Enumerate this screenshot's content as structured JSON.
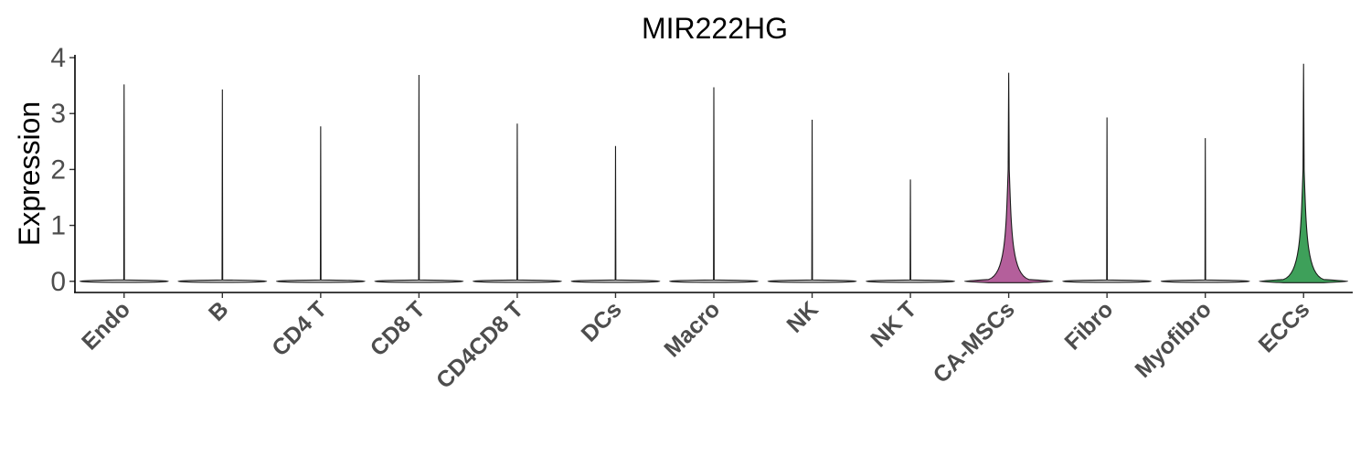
{
  "chart_data": {
    "type": "violin",
    "title": "MIR222HG",
    "xlabel": "",
    "ylabel": "Expression",
    "ylim": [
      -0.2,
      4.05
    ],
    "yticks": [
      0,
      1,
      2,
      3,
      4
    ],
    "grid": false,
    "legend": "none",
    "categories": [
      "Endo",
      "B",
      "CD4 T",
      "CD8 T",
      "CD4CD8 T",
      "DCs",
      "Macro",
      "NK",
      "NK T",
      "CA-MSCs",
      "Fibro",
      "Myofibro",
      "ECCs"
    ],
    "max_values": [
      3.52,
      3.43,
      2.77,
      3.69,
      2.82,
      2.42,
      3.47,
      2.89,
      1.82,
      3.73,
      2.93,
      2.56,
      3.89
    ],
    "fill_colors": [
      "#d9d9d9",
      "#d9d9d9",
      "#d9d9d9",
      "#d9d9d9",
      "#d9d9d9",
      "#d9d9d9",
      "#d9d9d9",
      "#d9d9d9",
      "#d9d9d9",
      "#b45f9b",
      "#d9d9d9",
      "#d9d9d9",
      "#3ea05a"
    ],
    "nonzero_density": [
      0,
      0,
      0,
      0,
      0,
      0,
      0,
      0,
      0,
      1,
      0,
      0,
      1
    ]
  }
}
